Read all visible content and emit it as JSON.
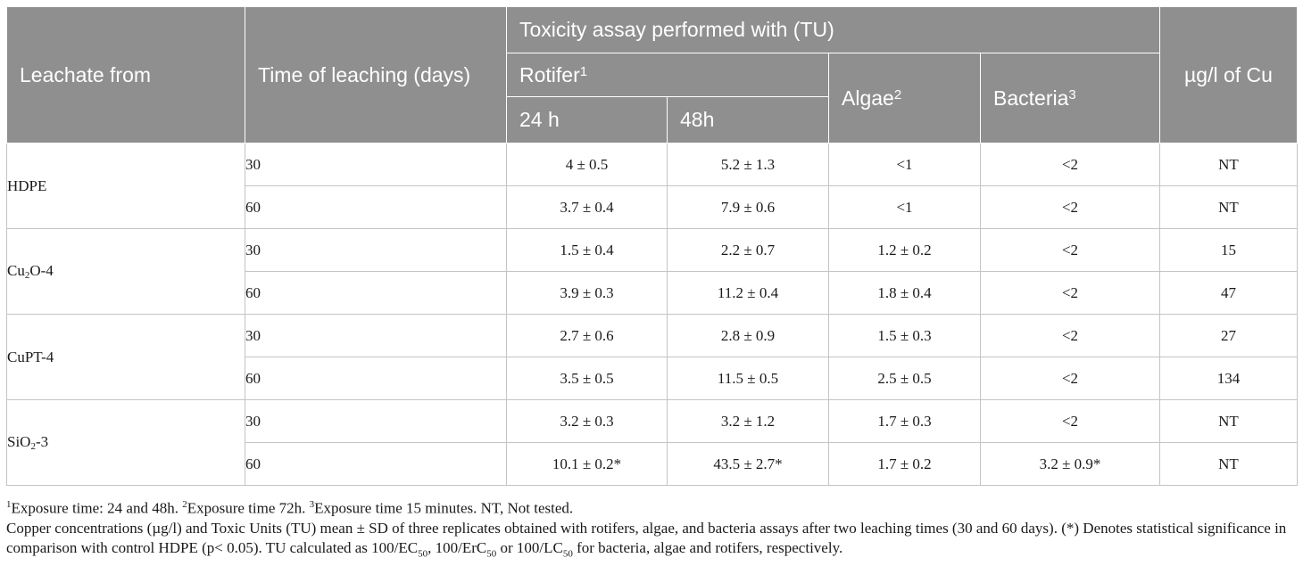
{
  "header": {
    "leachate_from": "Leachate from",
    "time_of_leaching": "Time of leaching (days)",
    "toxicity_assay": "Toxicity assay performed with (TU)",
    "rotifer": "Rotifer",
    "rotifer_sup": "1",
    "algae": "Algae",
    "algae_sup": "2",
    "bacteria": "Bacteria",
    "bacteria_sup": "3",
    "cu": "µg/l of Cu",
    "h24": "24 h",
    "h48": "48h"
  },
  "groups": [
    {
      "name": "HDPE",
      "name_sub": "",
      "name_suffix": "",
      "rows": [
        {
          "time": "30",
          "r24": "4 ± 0.5",
          "r48": "5.2 ± 1.3",
          "algae": "<1",
          "bacteria": "<2",
          "cu": "NT"
        },
        {
          "time": "60",
          "r24": "3.7 ± 0.4",
          "r48": "7.9 ± 0.6",
          "algae": "<1",
          "bacteria": "<2",
          "cu": "NT"
        }
      ]
    },
    {
      "name": "Cu",
      "name_sub": "2",
      "name_suffix": "O-4",
      "rows": [
        {
          "time": "30",
          "r24": "1.5 ± 0.4",
          "r48": "2.2 ± 0.7",
          "algae": "1.2 ± 0.2",
          "bacteria": "<2",
          "cu": "15"
        },
        {
          "time": "60",
          "r24": "3.9 ± 0.3",
          "r48": "11.2 ± 0.4",
          "algae": "1.8 ± 0.4",
          "bacteria": "<2",
          "cu": "47"
        }
      ]
    },
    {
      "name": "CuPT-4",
      "name_sub": "",
      "name_suffix": "",
      "rows": [
        {
          "time": "30",
          "r24": "2.7 ± 0.6",
          "r48": "2.8 ± 0.9",
          "algae": "1.5 ± 0.3",
          "bacteria": "<2",
          "cu": "27"
        },
        {
          "time": "60",
          "r24": "3.5 ± 0.5",
          "r48": "11.5 ± 0.5",
          "algae": "2.5 ± 0.5",
          "bacteria": "<2",
          "cu": "134"
        }
      ]
    },
    {
      "name": "SiO",
      "name_sub": "2",
      "name_suffix": "-3",
      "rows": [
        {
          "time": "30",
          "r24": "3.2 ± 0.3",
          "r48": "3.2 ± 1.2",
          "algae": "1.7 ± 0.3",
          "bacteria": "<2",
          "cu": "NT"
        },
        {
          "time": "60",
          "r24": "10.1 ± 0.2*",
          "r48": "43.5 ± 2.7*",
          "algae": "1.7 ± 0.2",
          "bacteria": "3.2 ± 0.9*",
          "cu": "NT"
        }
      ]
    }
  ],
  "footnotes": {
    "n1_sup": "1",
    "n1": "Exposure time: 24 and 48h. ",
    "n2_sup": "2",
    "n2": "Exposure time 72h. ",
    "n3_sup": "3",
    "n3": "Exposure time 15 minutes. NT, Not tested.",
    "caption_a": "Copper concentrations (µg/l) and Toxic Units (TU) mean ± SD of three replicates obtained with rotifers, algae, and bacteria assays after two leaching times (30 and 60 days). (*) Denotes statistical significance in comparison with control HDPE (p< 0.05). TU calculated as 100/EC",
    "sub_50": "50",
    "caption_b": ", 100/ErC",
    "caption_c": " or 100/LC",
    "caption_d": " for bacteria, algae and rotifers, respectively."
  }
}
